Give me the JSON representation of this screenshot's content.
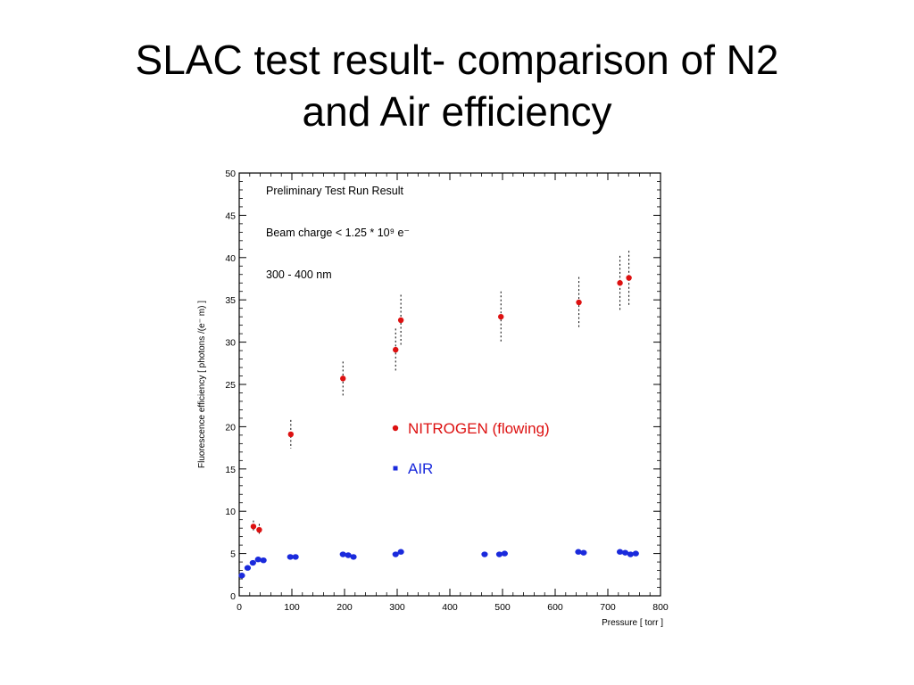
{
  "slide": {
    "title_line1": "SLAC test result- comparison of N2",
    "title_line2": "and Air efficiency"
  },
  "chart_data": {
    "type": "scatter",
    "title": "",
    "xlabel": "Pressure [ torr ]",
    "ylabel": "Fluorescence efficiency [ photons /(e⁻ m) ]",
    "xlim": [
      0,
      800
    ],
    "ylim": [
      0,
      50
    ],
    "x_ticks": [
      0,
      100,
      200,
      300,
      400,
      500,
      600,
      700,
      800
    ],
    "y_ticks": [
      0,
      5,
      10,
      15,
      20,
      25,
      30,
      35,
      40,
      45,
      50
    ],
    "grid": false,
    "legend_position": "center-right",
    "annotations": [
      "Preliminary Test Run Result",
      "Beam charge < 1.25 * 10⁹ e⁻",
      "300 - 400 nm"
    ],
    "series": [
      {
        "name": "NITROGEN (flowing)",
        "color": "#dd1111",
        "marker": "circle",
        "points": [
          {
            "x": 27,
            "y": 8.2,
            "err": 0.7
          },
          {
            "x": 38,
            "y": 7.8,
            "err": 0.7
          },
          {
            "x": 98,
            "y": 19.1,
            "err": 1.7
          },
          {
            "x": 197,
            "y": 25.7,
            "err": 2.0
          },
          {
            "x": 297,
            "y": 29.1,
            "err": 2.5
          },
          {
            "x": 307,
            "y": 32.6,
            "err": 3.0
          },
          {
            "x": 497,
            "y": 33.0,
            "err": 3.0
          },
          {
            "x": 645,
            "y": 34.7,
            "err": 3.0
          },
          {
            "x": 723,
            "y": 37.0,
            "err": 3.2
          },
          {
            "x": 740,
            "y": 37.6,
            "err": 3.2
          }
        ]
      },
      {
        "name": "AIR",
        "color": "#1a2adc",
        "marker": "square",
        "points": [
          {
            "x": 5,
            "y": 2.4
          },
          {
            "x": 16,
            "y": 3.3
          },
          {
            "x": 26,
            "y": 3.9
          },
          {
            "x": 36,
            "y": 4.3
          },
          {
            "x": 46,
            "y": 4.2
          },
          {
            "x": 97,
            "y": 4.6
          },
          {
            "x": 107,
            "y": 4.6
          },
          {
            "x": 197,
            "y": 4.9
          },
          {
            "x": 207,
            "y": 4.8
          },
          {
            "x": 217,
            "y": 4.6
          },
          {
            "x": 297,
            "y": 4.9
          },
          {
            "x": 307,
            "y": 5.2
          },
          {
            "x": 466,
            "y": 4.9
          },
          {
            "x": 494,
            "y": 4.9
          },
          {
            "x": 504,
            "y": 5.0
          },
          {
            "x": 644,
            "y": 5.2
          },
          {
            "x": 654,
            "y": 5.1
          },
          {
            "x": 723,
            "y": 5.2
          },
          {
            "x": 733,
            "y": 5.1
          },
          {
            "x": 743,
            "y": 4.9
          },
          {
            "x": 753,
            "y": 5.0
          }
        ]
      }
    ]
  }
}
